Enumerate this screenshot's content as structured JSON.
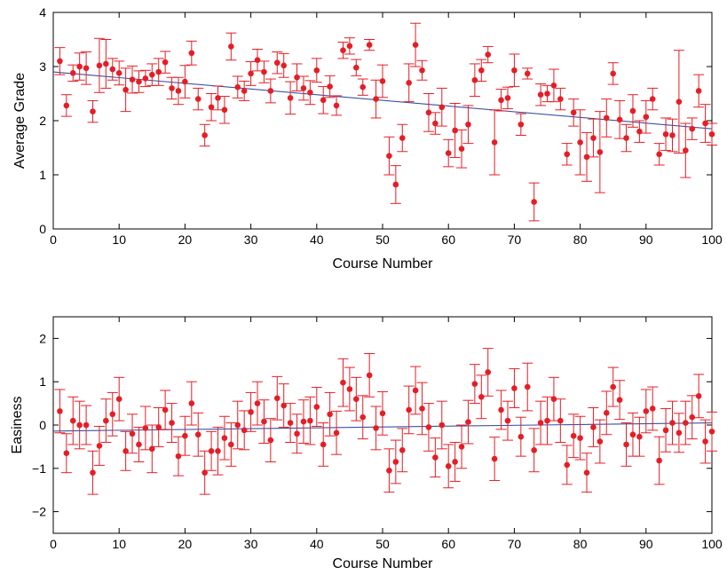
{
  "chart_data": [
    {
      "type": "scatter",
      "xlabel": "Course Number",
      "ylabel": "Average Grade",
      "xlim": [
        0,
        100
      ],
      "ylim": [
        0,
        4
      ],
      "xticks": [
        "0",
        "10",
        "20",
        "30",
        "40",
        "50",
        "60",
        "70",
        "80",
        "90",
        "100"
      ],
      "yticks": [
        "0",
        "1",
        "2",
        "3",
        "4"
      ],
      "grid": false,
      "colors": {
        "points": "#e41e26",
        "errorbars": "#e41e26",
        "fit": "#3a52a3",
        "axes": "#000000"
      },
      "fit_line": {
        "x": [
          0,
          100
        ],
        "y": [
          2.9,
          1.85
        ]
      },
      "series": [
        {
          "x": [
            1,
            2,
            3,
            4,
            5,
            6,
            7,
            8,
            9,
            10,
            11,
            12,
            13,
            14,
            15,
            16,
            17,
            18,
            19,
            20,
            21,
            22,
            23,
            24,
            25,
            26,
            27,
            28,
            29,
            30,
            31,
            32,
            33,
            34,
            35,
            36,
            37,
            38,
            39,
            40,
            41,
            42,
            43,
            44,
            45,
            46,
            47,
            48,
            49,
            50,
            51,
            52,
            53,
            54,
            55,
            56,
            57,
            58,
            59,
            60,
            61,
            62,
            63,
            64,
            65,
            66,
            67,
            68,
            69,
            70,
            71,
            72,
            73,
            74,
            75,
            76,
            77,
            78,
            79,
            80,
            81,
            82,
            83,
            84,
            85,
            86,
            87,
            88,
            89,
            90,
            91,
            92,
            93,
            94,
            95,
            96,
            97,
            98,
            99,
            100
          ],
          "y": [
            3.1,
            2.28,
            2.88,
            3.0,
            2.97,
            2.17,
            3.02,
            3.05,
            2.95,
            2.88,
            2.57,
            2.76,
            2.72,
            2.78,
            2.85,
            2.9,
            3.08,
            2.6,
            2.55,
            2.72,
            3.25,
            2.4,
            1.73,
            2.25,
            2.42,
            2.2,
            3.37,
            2.62,
            2.55,
            2.87,
            3.12,
            2.9,
            2.55,
            3.07,
            3.02,
            2.42,
            2.8,
            2.6,
            2.52,
            2.93,
            2.38,
            2.63,
            2.28,
            3.3,
            3.38,
            2.98,
            2.62,
            3.4,
            2.4,
            2.73,
            1.35,
            0.82,
            1.68,
            2.7,
            3.4,
            2.93,
            2.15,
            1.95,
            2.25,
            1.4,
            1.82,
            1.48,
            1.93,
            2.75,
            2.93,
            3.22,
            1.6,
            2.38,
            2.42,
            2.93,
            1.93,
            2.87,
            0.5,
            2.48,
            2.5,
            2.65,
            2.4,
            1.38,
            2.15,
            1.6,
            1.33,
            1.68,
            1.42,
            2.05,
            2.87,
            2.02,
            1.68,
            2.18,
            1.8,
            2.07,
            2.4,
            1.38,
            1.75,
            1.73,
            2.35,
            1.45,
            1.85,
            2.55,
            1.95,
            1.75
          ],
          "err": [
            0.25,
            0.2,
            0.15,
            0.25,
            0.3,
            0.2,
            0.5,
            0.45,
            0.2,
            0.22,
            0.4,
            0.25,
            0.2,
            0.15,
            0.2,
            0.25,
            0.2,
            0.2,
            0.25,
            0.3,
            0.22,
            0.2,
            0.2,
            0.25,
            0.22,
            0.25,
            0.25,
            0.2,
            0.18,
            0.22,
            0.2,
            0.2,
            0.22,
            0.2,
            0.22,
            0.3,
            0.25,
            0.22,
            0.22,
            0.22,
            0.25,
            0.2,
            0.18,
            0.15,
            0.15,
            0.15,
            0.15,
            0.1,
            0.35,
            0.3,
            0.35,
            0.35,
            0.25,
            0.35,
            0.4,
            0.18,
            0.35,
            0.2,
            0.35,
            0.25,
            0.5,
            0.35,
            0.35,
            0.3,
            0.2,
            0.15,
            0.6,
            0.2,
            0.2,
            0.3,
            0.2,
            0.1,
            0.35,
            0.2,
            0.15,
            0.3,
            0.2,
            0.2,
            0.25,
            0.6,
            0.45,
            0.35,
            0.75,
            0.35,
            0.2,
            0.35,
            0.25,
            0.3,
            0.2,
            0.3,
            0.2,
            0.2,
            0.3,
            0.3,
            0.95,
            0.5,
            0.2,
            0.3,
            0.35,
            0.2
          ]
        }
      ]
    },
    {
      "type": "scatter",
      "xlabel": "Course Number",
      "ylabel": "Easiness",
      "xlim": [
        0,
        100
      ],
      "ylim": [
        -2.5,
        2.5
      ],
      "xticks": [
        "0",
        "10",
        "20",
        "30",
        "40",
        "50",
        "60",
        "70",
        "80",
        "90",
        "100"
      ],
      "yticks": [
        "−2",
        "−1",
        "0",
        "1",
        "2"
      ],
      "ytick_values": [
        -2,
        -1,
        0,
        1,
        2
      ],
      "grid": false,
      "colors": {
        "points": "#e41e26",
        "errorbars": "#e41e26",
        "fit": "#3a52a3",
        "axes": "#000000"
      },
      "fit_line": {
        "x": [
          0,
          100
        ],
        "y": [
          -0.14,
          0.05
        ]
      },
      "series": [
        {
          "x": [
            1,
            2,
            3,
            4,
            5,
            6,
            7,
            8,
            9,
            10,
            11,
            12,
            13,
            14,
            15,
            16,
            17,
            18,
            19,
            20,
            21,
            22,
            23,
            24,
            25,
            26,
            27,
            28,
            29,
            30,
            31,
            32,
            33,
            34,
            35,
            36,
            37,
            38,
            39,
            40,
            41,
            42,
            43,
            44,
            45,
            46,
            47,
            48,
            49,
            50,
            51,
            52,
            53,
            54,
            55,
            56,
            57,
            58,
            59,
            60,
            61,
            62,
            63,
            64,
            65,
            66,
            67,
            68,
            69,
            70,
            71,
            72,
            73,
            74,
            75,
            76,
            77,
            78,
            79,
            80,
            81,
            82,
            83,
            84,
            85,
            86,
            87,
            88,
            89,
            90,
            91,
            92,
            93,
            94,
            95,
            96,
            97,
            98,
            99,
            100
          ],
          "y": [
            0.32,
            -0.65,
            0.1,
            0.0,
            0.0,
            -1.1,
            -0.48,
            0.1,
            0.25,
            0.6,
            -0.6,
            -0.2,
            -0.45,
            -0.07,
            -0.55,
            -0.05,
            0.35,
            0.05,
            -0.72,
            -0.25,
            0.5,
            -0.22,
            -1.1,
            -0.6,
            -0.6,
            -0.3,
            -0.45,
            0.0,
            -0.12,
            0.3,
            0.5,
            0.08,
            -0.35,
            0.62,
            0.45,
            0.05,
            -0.2,
            0.08,
            0.1,
            0.42,
            -0.45,
            0.25,
            -0.18,
            0.98,
            0.83,
            0.6,
            0.18,
            1.15,
            -0.07,
            0.27,
            -1.05,
            -0.85,
            -0.58,
            0.35,
            0.8,
            0.38,
            -0.05,
            -0.75,
            0.0,
            -0.95,
            -0.85,
            -0.5,
            0.07,
            0.95,
            0.65,
            1.22,
            -0.78,
            0.35,
            0.1,
            0.85,
            -0.27,
            0.88,
            -0.58,
            0.05,
            0.1,
            0.6,
            0.1,
            -0.92,
            -0.25,
            -0.3,
            -1.1,
            -0.05,
            -0.38,
            0.28,
            0.88,
            0.58,
            -0.45,
            -0.22,
            -0.27,
            0.32,
            0.38,
            -0.82,
            -0.12,
            0.05,
            -0.18,
            0.05,
            0.18,
            0.67,
            -0.38,
            -0.15
          ],
          "err": [
            0.5,
            0.45,
            0.55,
            0.55,
            0.45,
            0.5,
            0.45,
            0.5,
            0.5,
            0.5,
            0.45,
            0.45,
            0.4,
            0.5,
            0.55,
            0.45,
            0.45,
            0.45,
            0.45,
            0.45,
            0.5,
            0.5,
            0.5,
            0.45,
            0.55,
            0.5,
            0.5,
            0.55,
            0.45,
            0.45,
            0.5,
            0.5,
            0.5,
            0.5,
            0.5,
            0.45,
            0.45,
            0.5,
            0.55,
            0.45,
            0.5,
            0.5,
            0.5,
            0.55,
            0.5,
            0.5,
            0.5,
            0.5,
            0.5,
            0.5,
            0.5,
            0.5,
            0.5,
            0.55,
            0.55,
            0.6,
            0.55,
            0.45,
            0.55,
            0.5,
            0.45,
            0.5,
            0.5,
            0.45,
            0.5,
            0.55,
            0.5,
            0.45,
            0.45,
            0.45,
            0.45,
            0.55,
            0.5,
            0.5,
            0.55,
            0.5,
            0.5,
            0.45,
            0.5,
            0.5,
            0.45,
            0.45,
            0.5,
            0.5,
            0.45,
            0.45,
            0.5,
            0.5,
            0.45,
            0.5,
            0.5,
            0.55,
            0.5,
            0.5,
            0.45,
            0.5,
            0.5,
            0.5,
            0.5,
            0.45
          ]
        }
      ]
    }
  ]
}
